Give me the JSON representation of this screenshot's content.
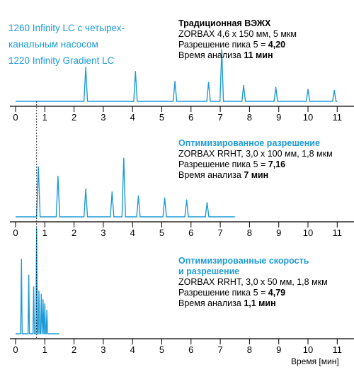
{
  "system_label": {
    "line1": "1260 Infinity LC с четырех-",
    "line2": "канальным насосом",
    "line3": "1220 Infinity Gradient LC"
  },
  "x_axis_label": "Время [мин]",
  "colors": {
    "accent": "#1e9bd7",
    "axis": "#000000"
  },
  "panels": [
    {
      "title": "Традиционная ВЭЖХ",
      "title_lines": [
        "Традиционная ВЭЖХ"
      ],
      "column": "ZORBAX 4,6 x 150 мм, 5 мкм",
      "resolution_label": "Разрешение пика 5 = ",
      "resolution_value": "4,20",
      "time_label": "Время анализа ",
      "time_value": "11 мин"
    },
    {
      "title": "Оптимизированное разрешение",
      "title_lines": [
        "Оптимизированное разрешение"
      ],
      "column": "ZORBAX RRHT, 3,0 x 100 мм, 1,8 мкм",
      "resolution_label": "Разрешение пика 5 = ",
      "resolution_value": "7,16",
      "time_label": "Время анализа ",
      "time_value": "7 мин"
    },
    {
      "title": "Оптимизированные скорость и разрешение",
      "title_lines": [
        "Оптимизированные скорость",
        "и разрешение"
      ],
      "column": "ZORBAX RRHT, 3,0 x 50 мм, 1,8 мкм",
      "resolution_label": "Разрешение пика 5 = ",
      "resolution_value": "4,79",
      "time_label": "Время анализа ",
      "time_value": "1,1 мин"
    }
  ],
  "chart_data": [
    {
      "type": "line",
      "series": [
        {
          "values_note": "",
          "baseline_end": 11.0,
          "peaks": [
            {
              "x": 2.4,
              "h": 0.34
            },
            {
              "x": 4.1,
              "h": 0.3
            },
            {
              "x": 5.45,
              "h": 0.2
            },
            {
              "x": 6.6,
              "h": 0.19
            },
            {
              "x": 7.05,
              "h": 0.52
            },
            {
              "x": 7.8,
              "h": 0.16
            },
            {
              "x": 8.9,
              "h": 0.14
            },
            {
              "x": 10.0,
              "h": 0.12
            },
            {
              "x": 10.9,
              "h": 0.11
            }
          ]
        }
      ],
      "xlim": [
        0,
        11.5
      ],
      "xticks": [
        0,
        1,
        2,
        3,
        4,
        5,
        6,
        7,
        8,
        9,
        10,
        11
      ],
      "xlabel": ""
    },
    {
      "type": "line",
      "series": [
        {
          "baseline_end": 7.5,
          "peaks": [
            {
              "x": 0.78,
              "h": 0.74
            },
            {
              "x": 1.45,
              "h": 0.6
            },
            {
              "x": 2.4,
              "h": 0.41
            },
            {
              "x": 3.3,
              "h": 0.37
            },
            {
              "x": 3.7,
              "h": 0.87
            },
            {
              "x": 4.2,
              "h": 0.31
            },
            {
              "x": 5.1,
              "h": 0.28
            },
            {
              "x": 5.85,
              "h": 0.25
            },
            {
              "x": 6.55,
              "h": 0.21
            }
          ]
        }
      ],
      "xlim": [
        0,
        11.5
      ],
      "xticks": [
        0,
        1,
        2,
        3,
        4,
        5,
        6,
        7,
        8,
        9,
        10,
        11
      ],
      "xlabel": ""
    },
    {
      "type": "line",
      "series": [
        {
          "baseline_end": 1.5,
          "peaks": [
            {
              "x": 0.2,
              "h": 0.7
            },
            {
              "x": 0.45,
              "h": 0.55
            },
            {
              "x": 0.62,
              "h": 0.44
            },
            {
              "x": 0.72,
              "h": 0.99
            },
            {
              "x": 0.8,
              "h": 0.4
            },
            {
              "x": 0.88,
              "h": 0.37
            },
            {
              "x": 0.94,
              "h": 0.32
            },
            {
              "x": 1.0,
              "h": 0.28
            },
            {
              "x": 1.07,
              "h": 0.22
            }
          ]
        }
      ],
      "xlim": [
        0,
        11.5
      ],
      "xticks": [
        0,
        1,
        2,
        3,
        4,
        5,
        6,
        7,
        8,
        9,
        10,
        11
      ],
      "xlabel": "Время [мин]"
    }
  ]
}
